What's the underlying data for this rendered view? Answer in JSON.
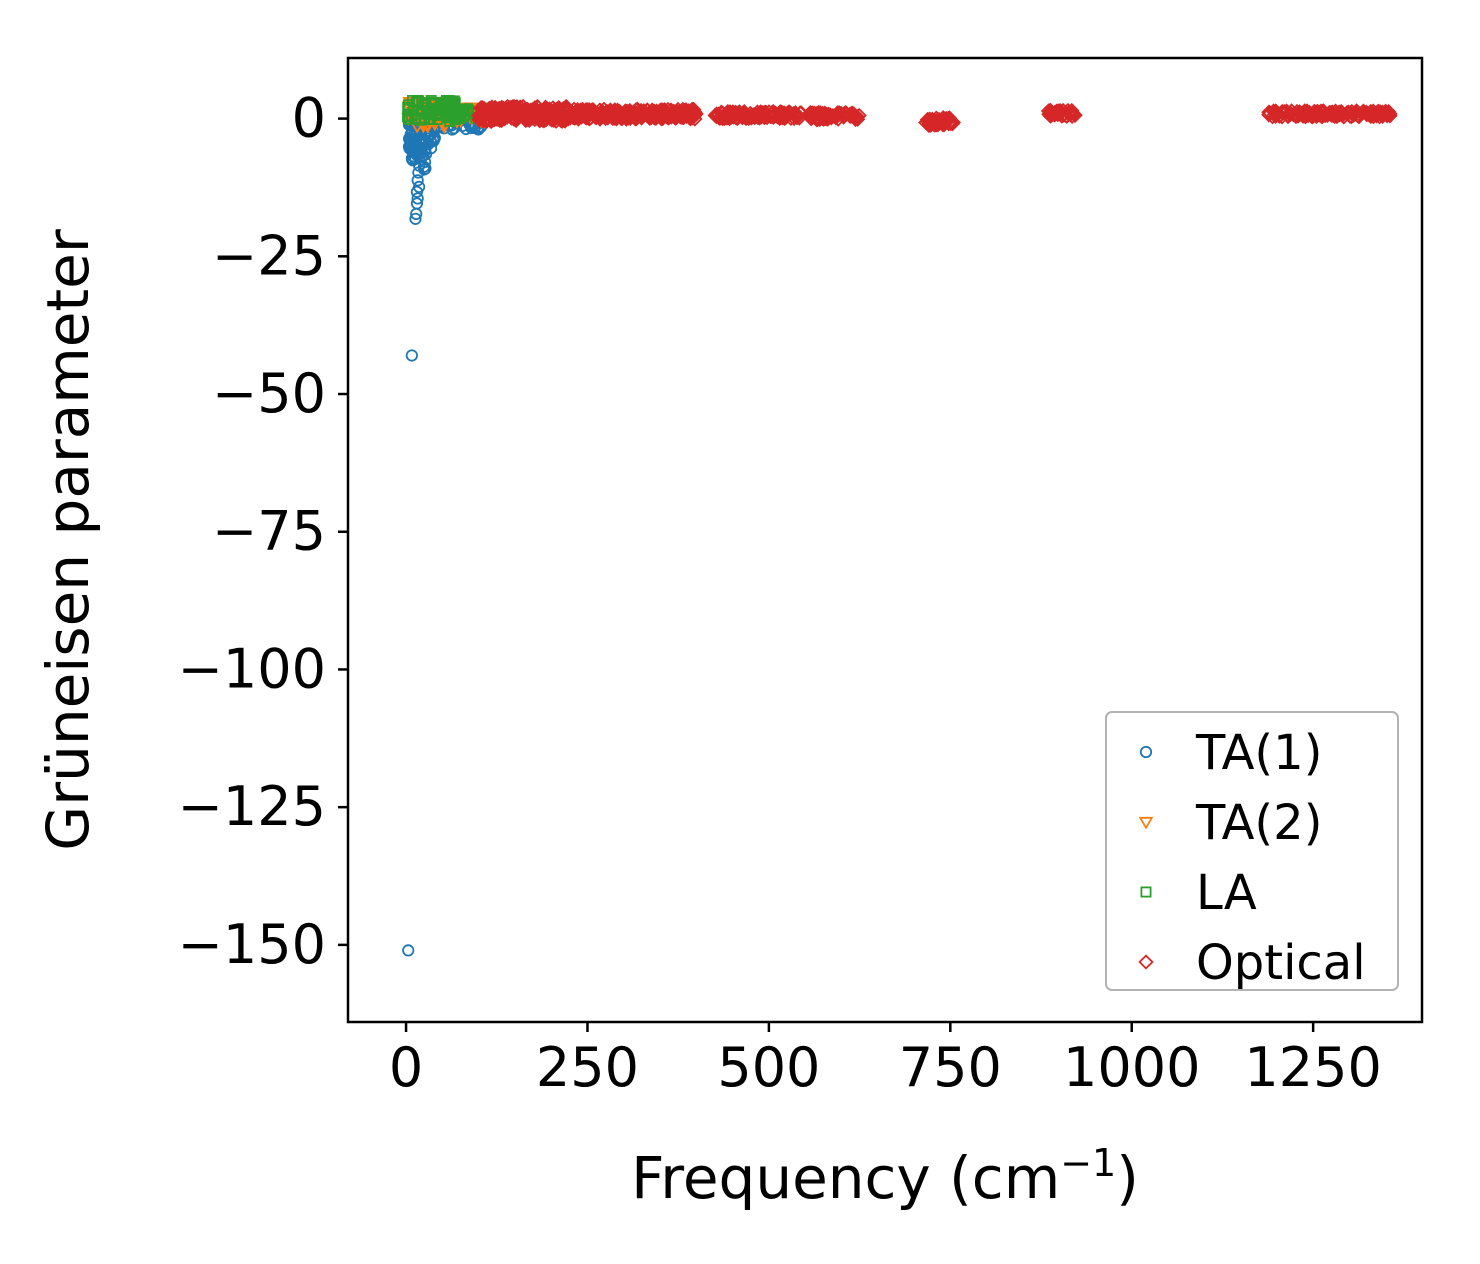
{
  "figure": {
    "background": "#ffffff"
  },
  "chart_data": {
    "type": "scatter",
    "title": "",
    "xlabel": "Frequency (cm⁻¹)",
    "xlabel_parts": {
      "prefix": "Frequency (cm",
      "superscript": "−1",
      "suffix": ")"
    },
    "ylabel": "Grüneisen parameter",
    "xlim": [
      -80,
      1400
    ],
    "ylim": [
      -164,
      11
    ],
    "grid": false,
    "x_ticks": {
      "values": [
        0,
        250,
        500,
        750,
        1000,
        1250
      ],
      "labels": [
        "0",
        "250",
        "500",
        "750",
        "1000",
        "1250"
      ]
    },
    "y_ticks": {
      "values": [
        0,
        -25,
        -50,
        -75,
        -100,
        -125,
        -150
      ],
      "labels": [
        "0",
        "−25",
        "−50",
        "−75",
        "−100",
        "−125",
        "−150"
      ]
    },
    "legend": {
      "position": "lower right",
      "border_color": "#b3b3b3",
      "background": "#ffffff"
    },
    "series": [
      {
        "name": "TA(1)",
        "marker": "circle",
        "color": "#1f77b4",
        "clusters": [
          {
            "x": [
              4,
              40
            ],
            "y": [
              -6,
              1.6
            ],
            "n": 95,
            "xbias": "left"
          },
          {
            "x": [
              8,
              28
            ],
            "y": [
              -9.5,
              -4
            ],
            "n": 30
          },
          {
            "x": [
              28,
              105
            ],
            "y": [
              -2,
              1.2
            ],
            "n": 70
          }
        ],
        "points": [
          [
            17,
            -9.8
          ],
          [
            16,
            -11.2
          ],
          [
            18,
            -12.4
          ],
          [
            15,
            -13.3
          ],
          [
            16,
            -14.5
          ],
          [
            15,
            -15.4
          ],
          [
            14,
            -17.3
          ],
          [
            13,
            -18.2
          ],
          [
            8,
            -43
          ],
          [
            3,
            -151
          ]
        ]
      },
      {
        "name": "TA(2)",
        "marker": "triangle-down",
        "color": "#ff7f0e",
        "clusters": [
          {
            "x": [
              3,
              60
            ],
            "y": [
              -1.5,
              3.0
            ],
            "n": 95,
            "ybias": "top"
          },
          {
            "x": [
              50,
              112
            ],
            "y": [
              -0.5,
              2.0
            ],
            "n": 50
          }
        ],
        "points": []
      },
      {
        "name": "LA",
        "marker": "square",
        "color": "#2ca02c",
        "clusters": [
          {
            "x": [
              2,
              70
            ],
            "y": [
              -0.5,
              3.3
            ],
            "n": 75,
            "ybias": "top"
          },
          {
            "x": [
              60,
              125
            ],
            "y": [
              0,
              2.0
            ],
            "n": 45
          }
        ],
        "points": []
      },
      {
        "name": "Optical",
        "marker": "diamond",
        "color": "#d62728",
        "clusters": [
          {
            "x": [
              100,
              225
            ],
            "y": [
              -0.5,
              2.2
            ],
            "n": 220
          },
          {
            "x": [
              225,
              400
            ],
            "y": [
              -0.1,
              1.7
            ],
            "n": 260
          },
          {
            "x": [
              425,
              470
            ],
            "y": [
              0,
              1.3
            ],
            "n": 60
          },
          {
            "x": [
              472,
              545
            ],
            "y": [
              0,
              1.3
            ],
            "n": 80
          },
          {
            "x": [
              556,
              625
            ],
            "y": [
              -0.2,
              1.1
            ],
            "n": 85
          },
          {
            "x": [
              716,
              756
            ],
            "y": [
              -1.3,
              0.2
            ],
            "n": 60
          },
          {
            "x": [
              885,
              922
            ],
            "y": [
              0.4,
              1.5
            ],
            "n": 55
          },
          {
            "x": [
              1186,
              1356
            ],
            "y": [
              0.3,
              1.4
            ],
            "n": 170
          }
        ],
        "points": []
      }
    ]
  }
}
